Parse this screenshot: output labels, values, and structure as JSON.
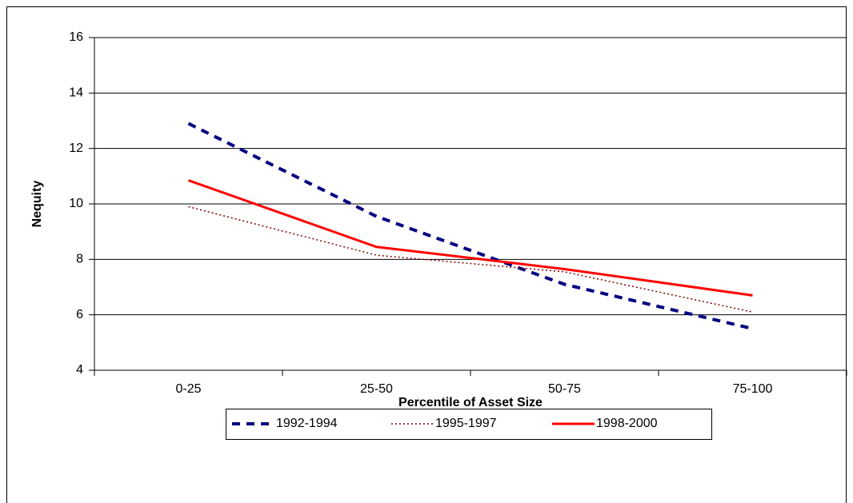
{
  "chart_data": {
    "type": "line",
    "x_label": "Percentile of Asset Size",
    "y_label": "Nequity",
    "categories": [
      "0-25",
      "25-50",
      "50-75",
      "75-100"
    ],
    "series": [
      {
        "name": "1992-1994",
        "color": "#000080",
        "line_style": "dashed",
        "values": [
          12.9,
          9.55,
          7.1,
          5.5
        ]
      },
      {
        "name": "1995-1997",
        "color": "#800000",
        "line_style": "dotted",
        "values": [
          9.9,
          8.15,
          7.55,
          6.1
        ]
      },
      {
        "name": "1998-2000",
        "color": "#ff0000",
        "line_style": "solid",
        "values": [
          10.85,
          8.45,
          7.65,
          6.7
        ]
      }
    ],
    "ylim": [
      4,
      16
    ],
    "yticks": [
      4,
      6,
      8,
      10,
      12,
      14,
      16
    ],
    "grid": true,
    "legend": "bottom"
  }
}
